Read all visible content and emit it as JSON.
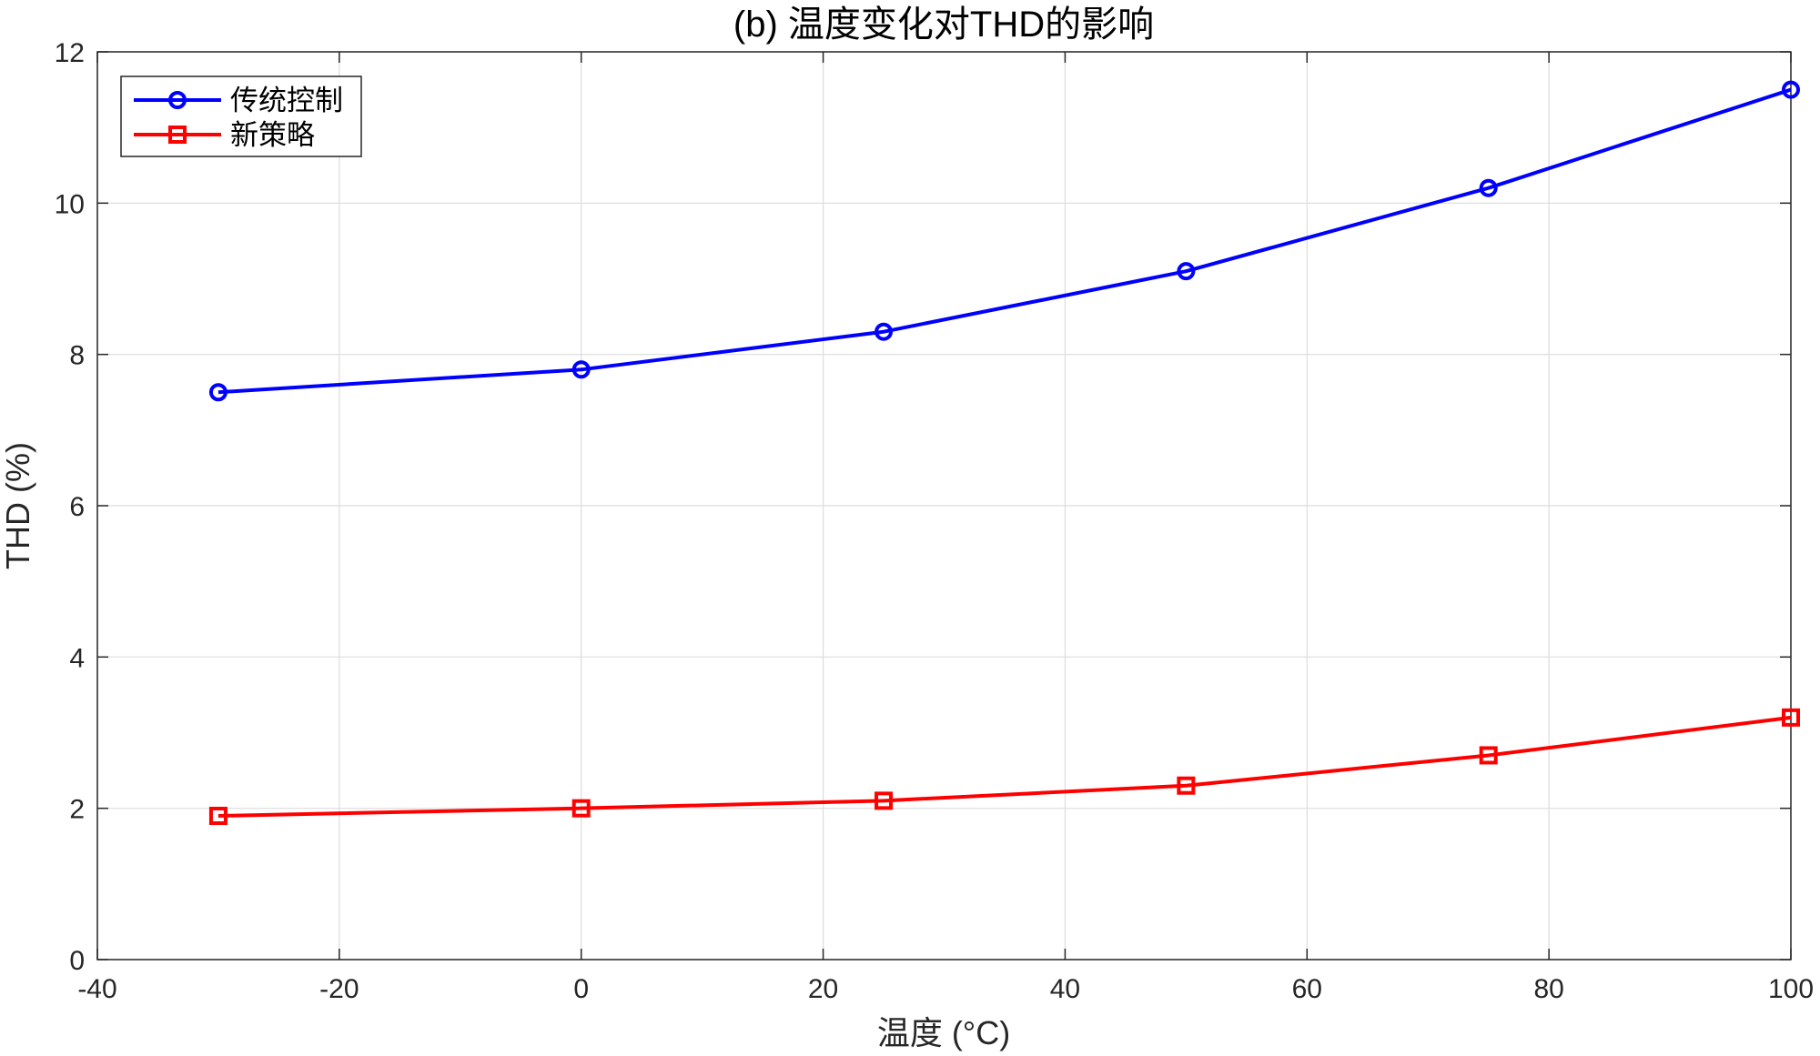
{
  "chart_data": {
    "type": "line",
    "title": "(b) 温度变化对THD的影响",
    "xlabel": "温度 (°C)",
    "ylabel": "THD (%)",
    "xlim": [
      -40,
      100
    ],
    "ylim": [
      0,
      12
    ],
    "xticks": [
      -40,
      -20,
      0,
      20,
      40,
      60,
      80,
      100
    ],
    "yticks": [
      0,
      2,
      4,
      6,
      8,
      10,
      12
    ],
    "grid": true,
    "legend_position": "top-left",
    "x": [
      -30,
      0,
      25,
      50,
      75,
      100
    ],
    "series": [
      {
        "name": "传统控制",
        "values": [
          7.5,
          7.8,
          8.3,
          9.1,
          10.2,
          11.5
        ],
        "color": "#0000ff",
        "marker": "circle"
      },
      {
        "name": "新策略",
        "values": [
          1.9,
          2.0,
          2.1,
          2.3,
          2.7,
          3.2
        ],
        "color": "#ff0000",
        "marker": "square"
      }
    ]
  }
}
